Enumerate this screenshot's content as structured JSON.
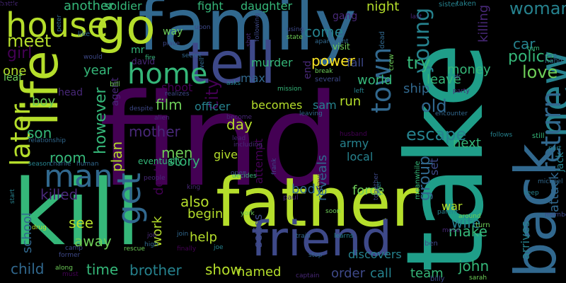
{
  "palette": {
    "background": "#000000",
    "dark_purple": "#440154",
    "purple": "#482878",
    "indigo": "#3e4989",
    "blue": "#31688e",
    "teal": "#26828e",
    "green": "#1f9e89",
    "light_green": "#35b779",
    "lime": "#6ece58",
    "yellow_green": "#b5de2b",
    "yellow": "#fde725"
  },
  "words": [
    {
      "text": "find",
      "color": "#440154",
      "rot": false
    },
    {
      "text": "take",
      "color": "#1f9e89",
      "rot": true
    },
    {
      "text": "kill",
      "color": "#35b779",
      "rot": false
    },
    {
      "text": "family",
      "color": "#31688e",
      "rot": false
    },
    {
      "text": "father",
      "color": "#b5de2b",
      "rot": false
    },
    {
      "text": "go",
      "color": "#b5de2b",
      "rot": false
    },
    {
      "text": "life",
      "color": "#b5de2b",
      "rot": true
    },
    {
      "text": "tell",
      "color": "#3e4989",
      "rot": false
    },
    {
      "text": "back",
      "color": "#31688e",
      "rot": true
    },
    {
      "text": "friend",
      "color": "#3e4989",
      "rot": false
    },
    {
      "text": "new",
      "color": "#26828e",
      "rot": true
    },
    {
      "text": "house",
      "color": "#b5de2b",
      "rot": false
    },
    {
      "text": "home",
      "color": "#35b779",
      "rot": false
    },
    {
      "text": "man",
      "color": "#31688e",
      "rot": false
    },
    {
      "text": "get",
      "color": "#31688e",
      "rot": true
    },
    {
      "text": "later",
      "color": "#b5de2b",
      "rot": true
    },
    {
      "text": "return",
      "color": "#31688e",
      "rot": true
    },
    {
      "text": "town",
      "color": "#31688e",
      "rot": true
    },
    {
      "text": "woman",
      "color": "#26828e",
      "rot": false
    },
    {
      "text": "police",
      "color": "#35b779",
      "rot": false
    },
    {
      "text": "love",
      "color": "#6ece58",
      "rot": false
    },
    {
      "text": "car",
      "color": "#26828e",
      "rot": false
    },
    {
      "text": "meet",
      "color": "#b5de2b",
      "rot": false
    },
    {
      "text": "girl",
      "color": "#440154",
      "rot": false
    },
    {
      "text": "one",
      "color": "#b5de2b",
      "rot": false
    },
    {
      "text": "year",
      "color": "#35b779",
      "rot": false
    },
    {
      "text": "city",
      "color": "#440154",
      "rot": true
    },
    {
      "text": "come",
      "color": "#26828e",
      "rot": false
    },
    {
      "text": "power",
      "color": "#fde725",
      "rot": false
    },
    {
      "text": "gang",
      "color": "#482878",
      "rot": false
    },
    {
      "text": "night",
      "color": "#b5de2b",
      "rot": false
    },
    {
      "text": "young",
      "color": "#26828e",
      "rot": true
    },
    {
      "text": "try",
      "color": "#35b779",
      "rot": false
    },
    {
      "text": "leave",
      "color": "#35b779",
      "rot": false
    },
    {
      "text": "money",
      "color": "#35b779",
      "rot": false
    },
    {
      "text": "world",
      "color": "#35b779",
      "rot": false
    },
    {
      "text": "ship",
      "color": "#31688e",
      "rot": false
    },
    {
      "text": "old",
      "color": "#31688e",
      "rot": false
    },
    {
      "text": "escape",
      "color": "#26828e",
      "rot": false
    },
    {
      "text": "next",
      "color": "#35b779",
      "rot": false
    },
    {
      "text": "set",
      "color": "#3e4989",
      "rot": true
    },
    {
      "text": "attack",
      "color": "#31688e",
      "rot": true
    },
    {
      "text": "jack",
      "color": "#26828e",
      "rot": true
    },
    {
      "text": "killing",
      "color": "#482878",
      "rot": true
    },
    {
      "text": "another",
      "color": "#35b779",
      "rot": false
    },
    {
      "text": "soldier",
      "color": "#35b779",
      "rot": false
    },
    {
      "text": "fight",
      "color": "#35b779",
      "rot": false
    },
    {
      "text": "daughter",
      "color": "#35b779",
      "rot": false
    },
    {
      "text": "mr",
      "color": "#35b779",
      "rot": false
    },
    {
      "text": "david",
      "color": "#482878",
      "rot": false
    },
    {
      "text": "murder",
      "color": "#35b779",
      "rot": false
    },
    {
      "text": "max",
      "color": "#31688e",
      "rot": false
    },
    {
      "text": "end",
      "color": "#482878",
      "rot": true
    },
    {
      "text": "fall",
      "color": "#3e4989",
      "rot": false
    },
    {
      "text": "shoot",
      "color": "#440154",
      "rot": false
    },
    {
      "text": "film",
      "color": "#6ece58",
      "rot": false
    },
    {
      "text": "officer",
      "color": "#26828e",
      "rot": false
    },
    {
      "text": "becomes",
      "color": "#b5de2b",
      "rot": false
    },
    {
      "text": "sam",
      "color": "#26828e",
      "rot": false
    },
    {
      "text": "run",
      "color": "#b5de2b",
      "rot": false
    },
    {
      "text": "boy",
      "color": "#6ece58",
      "rot": false
    },
    {
      "text": "son",
      "color": "#35b779",
      "rot": false
    },
    {
      "text": "however",
      "color": "#35b779",
      "rot": true
    },
    {
      "text": "mother",
      "color": "#482878",
      "rot": false
    },
    {
      "text": "day",
      "color": "#b5de2b",
      "rot": false
    },
    {
      "text": "attempt",
      "color": "#440154",
      "rot": true
    },
    {
      "text": "group",
      "color": "#31688e",
      "rot": true
    },
    {
      "text": "men",
      "color": "#6ece58",
      "rot": false
    },
    {
      "text": "story",
      "color": "#35b779",
      "rot": false
    },
    {
      "text": "room",
      "color": "#35b779",
      "rot": false
    },
    {
      "text": "plan",
      "color": "#b5de2b",
      "rot": true
    },
    {
      "text": "give",
      "color": "#b5de2b",
      "rot": false
    },
    {
      "text": "death",
      "color": "#440154",
      "rot": true
    },
    {
      "text": "reveals",
      "color": "#31688e",
      "rot": true
    },
    {
      "text": "army",
      "color": "#26828e",
      "rot": false
    },
    {
      "text": "local",
      "color": "#26828e",
      "rot": false
    },
    {
      "text": "killed",
      "color": "#482878",
      "rot": false
    },
    {
      "text": "body",
      "color": "#31688e",
      "rot": false
    },
    {
      "text": "force",
      "color": "#6ece58",
      "rot": false
    },
    {
      "text": "wife",
      "color": "#26828e",
      "rot": false
    },
    {
      "text": "war",
      "color": "#b5de2b",
      "rot": false
    },
    {
      "text": "arrives",
      "color": "#26828e",
      "rot": true
    },
    {
      "text": "also",
      "color": "#b5de2b",
      "rot": false
    },
    {
      "text": "begin",
      "color": "#b5de2b",
      "rot": false
    },
    {
      "text": "work",
      "color": "#b5de2b",
      "rot": true
    },
    {
      "text": "see",
      "color": "#b5de2b",
      "rot": false
    },
    {
      "text": "away",
      "color": "#6ece58",
      "rot": false
    },
    {
      "text": "help",
      "color": "#b5de2b",
      "rot": false
    },
    {
      "text": "make",
      "color": "#35b779",
      "rot": false
    },
    {
      "text": "series",
      "color": "#3e4989",
      "rot": true
    },
    {
      "text": "school",
      "color": "#31688e",
      "rot": true
    },
    {
      "text": "child",
      "color": "#31688e",
      "rot": false
    },
    {
      "text": "time",
      "color": "#35b779",
      "rot": false
    },
    {
      "text": "brother",
      "color": "#26828e",
      "rot": false
    },
    {
      "text": "show",
      "color": "#b5de2b",
      "rot": false
    },
    {
      "text": "named",
      "color": "#b5de2b",
      "rot": false
    },
    {
      "text": "order",
      "color": "#3e4989",
      "rot": false
    },
    {
      "text": "call",
      "color": "#26828e",
      "rot": false
    },
    {
      "text": "team",
      "color": "#35b779",
      "rot": false
    },
    {
      "text": "discovers",
      "color": "#26828e",
      "rot": false
    },
    {
      "text": "john",
      "color": "#35b779",
      "rot": false
    },
    {
      "text": "leaf",
      "color": "#6ece58",
      "rot": false
    },
    {
      "text": "head",
      "color": "#482878",
      "rot": false
    },
    {
      "text": "agent",
      "color": "#482878",
      "rot": true
    },
    {
      "text": "bill",
      "color": "#6ece58",
      "rot": false
    },
    {
      "text": "eventually",
      "color": "#35b779",
      "rot": false
    },
    {
      "text": "battle",
      "color": "#482878",
      "rot": false
    },
    {
      "text": "upon",
      "color": "#3e4989",
      "rot": false
    },
    {
      "text": "way",
      "color": "#6ece58",
      "rot": false
    },
    {
      "text": "using",
      "color": "#3e4989",
      "rot": false
    },
    {
      "text": "state",
      "color": "#6ece58",
      "rot": false
    },
    {
      "text": "apartment",
      "color": "#31688e",
      "rot": false
    },
    {
      "text": "visit",
      "color": "#6ece58",
      "rot": false
    },
    {
      "text": "crew",
      "color": "#6ece58",
      "rot": true
    },
    {
      "text": "dead",
      "color": "#31688e",
      "rot": true
    },
    {
      "text": "sister",
      "color": "#26828e",
      "rot": false
    },
    {
      "text": "taken",
      "color": "#26828e",
      "rot": false
    },
    {
      "text": "last",
      "color": "#482878",
      "rot": false
    },
    {
      "text": "break",
      "color": "#6ece58",
      "rot": false
    },
    {
      "text": "several",
      "color": "#3e4989",
      "rot": false
    },
    {
      "text": "people",
      "color": "#482878",
      "rot": false
    },
    {
      "text": "left",
      "color": "#26828e",
      "rot": false
    },
    {
      "text": "mission",
      "color": "#35b779",
      "rot": false
    },
    {
      "text": "asks",
      "color": "#26828e",
      "rot": false
    },
    {
      "text": "realizes",
      "color": "#3e4989",
      "rot": false
    },
    {
      "text": "despite",
      "color": "#3e4989",
      "rot": false
    },
    {
      "text": "alien",
      "color": "#482878",
      "rot": false
    },
    {
      "text": "become",
      "color": "#482878",
      "rot": false
    },
    {
      "text": "leaving",
      "color": "#31688e",
      "rot": false
    },
    {
      "text": "frank",
      "color": "#3e4989",
      "rot": true
    },
    {
      "text": "husband",
      "color": "#440154",
      "rot": false
    },
    {
      "text": "encounter",
      "color": "#31688e",
      "rot": false
    },
    {
      "text": "follows",
      "color": "#26828e",
      "rot": false
    },
    {
      "text": "still",
      "color": "#35b779",
      "rot": false
    },
    {
      "text": "part",
      "color": "#26828e",
      "rot": false
    },
    {
      "text": "michael",
      "color": "#31688e",
      "rot": false
    },
    {
      "text": "keep",
      "color": "#26828e",
      "rot": false
    },
    {
      "text": "member",
      "color": "#3e4989",
      "rot": false
    },
    {
      "text": "parent",
      "color": "#26828e",
      "rot": false
    },
    {
      "text": "around",
      "color": "#6ece58",
      "rot": false
    },
    {
      "text": "turn",
      "color": "#6ece58",
      "rot": false
    },
    {
      "text": "move",
      "color": "#482878",
      "rot": false
    },
    {
      "text": "ben",
      "color": "#3e4989",
      "rot": false
    },
    {
      "text": "sarah",
      "color": "#6ece58",
      "rot": false
    },
    {
      "text": "billy",
      "color": "#3e4989",
      "rot": false
    },
    {
      "text": "learns",
      "color": "#26828e",
      "rot": false
    },
    {
      "text": "soon",
      "color": "#6ece58",
      "rot": false
    },
    {
      "text": "train",
      "color": "#31688e",
      "rot": false
    },
    {
      "text": "captain",
      "color": "#482878",
      "rot": false
    },
    {
      "text": "stop",
      "color": "#31688e",
      "rot": false
    },
    {
      "text": "travel",
      "color": "#440154",
      "rot": true
    },
    {
      "text": "york",
      "color": "#6ece58",
      "rot": false
    },
    {
      "text": "paul",
      "color": "#482878",
      "rot": false
    },
    {
      "text": "offer",
      "color": "#26828e",
      "rot": true
    },
    {
      "text": "together",
      "color": "#3e4989",
      "rot": true
    },
    {
      "text": "meanwhile",
      "color": "#35b779",
      "rot": true
    },
    {
      "text": "decides",
      "color": "#35b779",
      "rot": false
    },
    {
      "text": "open",
      "color": "#3e4989",
      "rot": false
    },
    {
      "text": "including",
      "color": "#482878",
      "rot": false
    },
    {
      "text": "lead",
      "color": "#482878",
      "rot": false
    },
    {
      "text": "king",
      "color": "#482878",
      "rot": false
    },
    {
      "text": "joe",
      "color": "#26828e",
      "rot": false
    },
    {
      "text": "finally",
      "color": "#440154",
      "rot": false
    },
    {
      "text": "join",
      "color": "#31688e",
      "rot": false
    },
    {
      "text": "rescue",
      "color": "#6ece58",
      "rot": false
    },
    {
      "text": "high",
      "color": "#31688e",
      "rot": false
    },
    {
      "text": "job",
      "color": "#482878",
      "rot": false
    },
    {
      "text": "camp",
      "color": "#3e4989",
      "rot": false
    },
    {
      "text": "former",
      "color": "#3e4989",
      "rot": false
    },
    {
      "text": "must",
      "color": "#440154",
      "rot": false
    },
    {
      "text": "drug",
      "color": "#b5de2b",
      "rot": false
    },
    {
      "text": "start",
      "color": "#26828e",
      "rot": true
    },
    {
      "text": "season",
      "color": "#26828e",
      "rot": false
    },
    {
      "text": "charlie",
      "color": "#31688e",
      "rot": false
    },
    {
      "text": "human",
      "color": "#31688e",
      "rot": false
    },
    {
      "text": "relationship",
      "color": "#31688e",
      "rot": false
    },
    {
      "text": "island",
      "color": "#26828e",
      "rot": false
    },
    {
      "text": "along",
      "color": "#6ece58",
      "rot": false
    },
    {
      "text": "would",
      "color": "#3e4989",
      "rot": false
    },
    {
      "text": "peter",
      "color": "#31688e",
      "rot": true
    },
    {
      "text": "like",
      "color": "#31688e",
      "rot": false
    },
    {
      "text": "fire",
      "color": "#35b779",
      "rot": false
    },
    {
      "text": "secret",
      "color": "#31688e",
      "rot": false
    },
    {
      "text": "place",
      "color": "#3e4989",
      "rot": false
    },
    {
      "text": "shot",
      "color": "#482878",
      "rot": true
    },
    {
      "text": "following",
      "color": "#3e4989",
      "rot": true
    },
    {
      "text": "well",
      "color": "#31688e",
      "rot": true
    },
    {
      "text": "tom",
      "color": "#35b779",
      "rot": false
    },
    {
      "text": "dog",
      "color": "#31688e",
      "rot": false
    },
    {
      "text": "hand",
      "color": "#31688e",
      "rot": false
    },
    {
      "text": "dr",
      "color": "#3e4989",
      "rot": false
    },
    {
      "text": "party",
      "color": "#482878",
      "rot": false
    },
    {
      "text": "want",
      "color": "#482878",
      "rot": false
    }
  ]
}
